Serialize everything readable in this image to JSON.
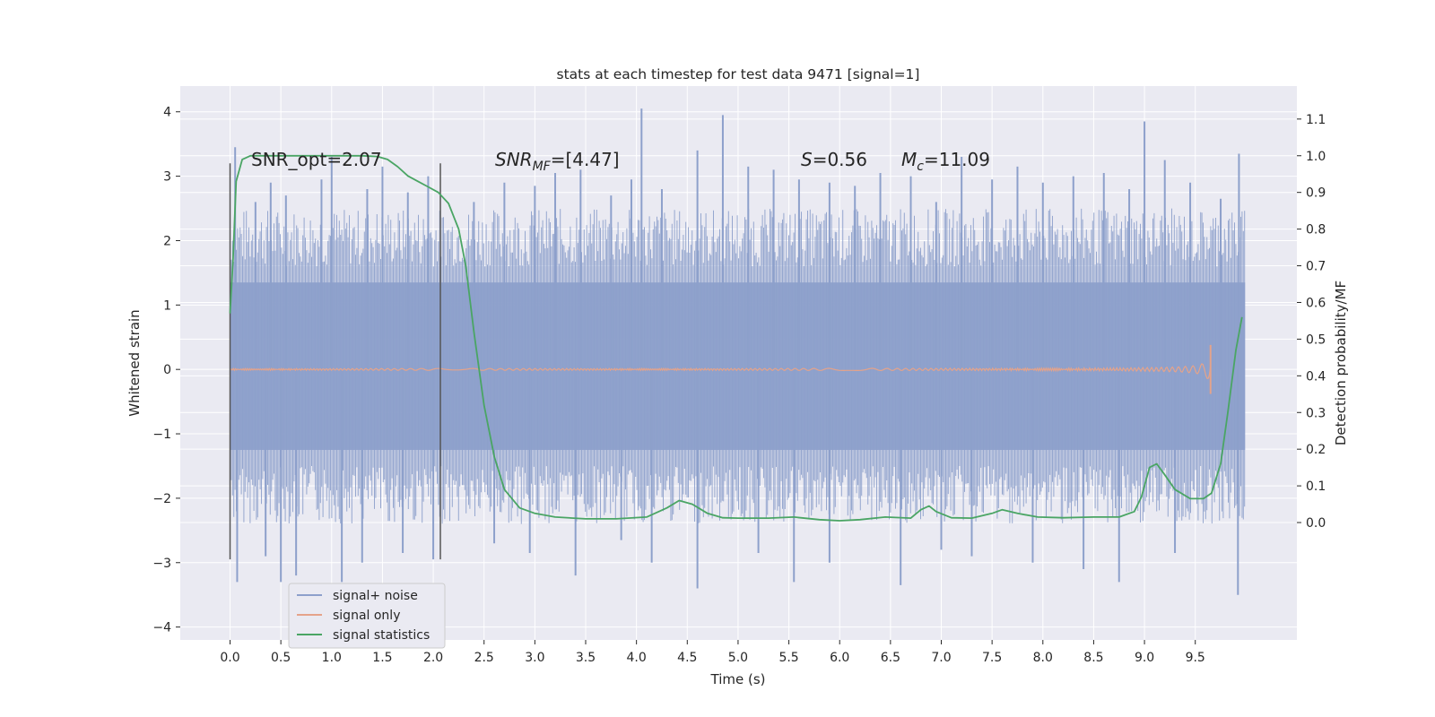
{
  "chart_data": {
    "type": "line",
    "title": "stats at each timestep for test data 9471 [signal=1]",
    "xlabel": "Time (s)",
    "ylabel": "Whitened strain",
    "y2label": "Detection probability/MF",
    "xlim": [
      -0.49,
      10.5
    ],
    "ylim": [
      -4.2,
      4.4
    ],
    "y2lim": [
      -0.32,
      1.19
    ],
    "xticks": [
      "0.0",
      "0.5",
      "1.0",
      "1.5",
      "2.0",
      "2.5",
      "3.0",
      "3.5",
      "4.0",
      "4.5",
      "5.0",
      "5.5",
      "6.0",
      "6.5",
      "7.0",
      "7.5",
      "8.0",
      "8.5",
      "9.0",
      "9.5"
    ],
    "yticks": [
      "4",
      "3",
      "2",
      "1",
      "0",
      "−1",
      "−2",
      "−3",
      "−4"
    ],
    "y2ticks": [
      "1.1",
      "1.0",
      "0.9",
      "0.8",
      "0.7",
      "0.6",
      "0.5",
      "0.4",
      "0.3",
      "0.2",
      "0.1",
      "0.0"
    ],
    "annotations": {
      "snr_opt": "SNR_opt=2.07",
      "snr_mf_italic": "SNR",
      "snr_mf_sub": "MF",
      "snr_mf_value": "=[4.47]",
      "s_italic": "S",
      "s_value": "=0.56",
      "mc_italic": "M",
      "mc_sub": "c",
      "mc_value": "=11.09"
    },
    "vertical_lines_x": [
      0.0,
      2.07
    ],
    "vertical_lines_y": [
      -2.95,
      3.2
    ],
    "grid": true,
    "legend_position": "lower-left",
    "series": [
      {
        "name": "signal+ noise",
        "color": "#8da0cb",
        "x_range": [
          0.0,
          9.99
        ],
        "core_band": [
          -1.25,
          1.35
        ],
        "spikes": [
          [
            0.05,
            3.45
          ],
          [
            0.25,
            2.6
          ],
          [
            0.4,
            2.9
          ],
          [
            0.55,
            2.7
          ],
          [
            0.9,
            2.95
          ],
          [
            1.0,
            3.3
          ],
          [
            1.35,
            2.8
          ],
          [
            1.5,
            3.15
          ],
          [
            1.75,
            2.75
          ],
          [
            1.95,
            3.0
          ],
          [
            2.4,
            2.6
          ],
          [
            2.7,
            2.9
          ],
          [
            3.0,
            2.85
          ],
          [
            3.2,
            3.05
          ],
          [
            3.45,
            3.1
          ],
          [
            3.75,
            2.7
          ],
          [
            3.95,
            2.95
          ],
          [
            4.05,
            4.05
          ],
          [
            4.25,
            2.8
          ],
          [
            4.6,
            3.4
          ],
          [
            4.85,
            3.95
          ],
          [
            5.1,
            3.15
          ],
          [
            5.35,
            3.1
          ],
          [
            5.6,
            2.95
          ],
          [
            5.9,
            2.9
          ],
          [
            6.15,
            2.85
          ],
          [
            6.4,
            3.05
          ],
          [
            6.7,
            3.0
          ],
          [
            6.95,
            2.6
          ],
          [
            7.2,
            3.3
          ],
          [
            7.5,
            2.95
          ],
          [
            7.75,
            3.15
          ],
          [
            8.0,
            2.9
          ],
          [
            8.3,
            3.0
          ],
          [
            8.6,
            3.05
          ],
          [
            8.85,
            2.8
          ],
          [
            9.0,
            3.85
          ],
          [
            9.2,
            3.25
          ],
          [
            9.45,
            2.9
          ],
          [
            9.75,
            2.65
          ],
          [
            9.93,
            3.35
          ]
        ],
        "dips": [
          [
            0.07,
            -3.3
          ],
          [
            0.35,
            -2.9
          ],
          [
            0.5,
            -3.3
          ],
          [
            0.65,
            -3.2
          ],
          [
            1.1,
            -3.3
          ],
          [
            1.3,
            -3.0
          ],
          [
            1.7,
            -2.85
          ],
          [
            2.0,
            -2.95
          ],
          [
            2.6,
            -2.7
          ],
          [
            2.95,
            -2.85
          ],
          [
            3.4,
            -3.2
          ],
          [
            3.85,
            -2.65
          ],
          [
            4.15,
            -3.0
          ],
          [
            4.6,
            -3.4
          ],
          [
            5.2,
            -2.85
          ],
          [
            5.55,
            -3.3
          ],
          [
            5.9,
            -3.0
          ],
          [
            6.6,
            -3.35
          ],
          [
            7.0,
            -2.8
          ],
          [
            7.3,
            -2.9
          ],
          [
            7.9,
            -3.0
          ],
          [
            8.4,
            -3.1
          ],
          [
            8.75,
            -3.3
          ],
          [
            9.3,
            -2.85
          ],
          [
            9.92,
            -3.5
          ]
        ]
      },
      {
        "name": "signal only",
        "color": "#e5a38a",
        "x_range": [
          0.0,
          9.65
        ],
        "chirp_peak_time": 9.65,
        "chirp_peak_amplitude": 0.28
      },
      {
        "name": "signal statistics",
        "color": "#4aa564",
        "axis": "right",
        "points": [
          [
            0.0,
            0.57
          ],
          [
            0.03,
            0.72
          ],
          [
            0.06,
            0.93
          ],
          [
            0.12,
            0.99
          ],
          [
            0.2,
            1.0
          ],
          [
            0.5,
            1.0
          ],
          [
            1.0,
            1.0
          ],
          [
            1.3,
            1.0
          ],
          [
            1.45,
            0.998
          ],
          [
            1.55,
            0.99
          ],
          [
            1.65,
            0.97
          ],
          [
            1.75,
            0.945
          ],
          [
            1.85,
            0.93
          ],
          [
            1.95,
            0.915
          ],
          [
            2.05,
            0.9
          ],
          [
            2.15,
            0.87
          ],
          [
            2.25,
            0.8
          ],
          [
            2.32,
            0.7
          ],
          [
            2.4,
            0.52
          ],
          [
            2.5,
            0.32
          ],
          [
            2.6,
            0.18
          ],
          [
            2.7,
            0.09
          ],
          [
            2.85,
            0.04
          ],
          [
            3.0,
            0.025
          ],
          [
            3.2,
            0.015
          ],
          [
            3.5,
            0.01
          ],
          [
            3.8,
            0.01
          ],
          [
            4.1,
            0.015
          ],
          [
            4.3,
            0.04
          ],
          [
            4.42,
            0.06
          ],
          [
            4.55,
            0.05
          ],
          [
            4.7,
            0.025
          ],
          [
            4.85,
            0.013
          ],
          [
            5.0,
            0.012
          ],
          [
            5.3,
            0.012
          ],
          [
            5.55,
            0.015
          ],
          [
            5.8,
            0.008
          ],
          [
            6.0,
            0.005
          ],
          [
            6.2,
            0.008
          ],
          [
            6.45,
            0.015
          ],
          [
            6.7,
            0.012
          ],
          [
            6.8,
            0.035
          ],
          [
            6.88,
            0.045
          ],
          [
            6.95,
            0.03
          ],
          [
            7.1,
            0.013
          ],
          [
            7.3,
            0.012
          ],
          [
            7.5,
            0.025
          ],
          [
            7.6,
            0.035
          ],
          [
            7.75,
            0.025
          ],
          [
            7.95,
            0.015
          ],
          [
            8.2,
            0.013
          ],
          [
            8.5,
            0.015
          ],
          [
            8.75,
            0.015
          ],
          [
            8.9,
            0.03
          ],
          [
            8.97,
            0.07
          ],
          [
            9.05,
            0.15
          ],
          [
            9.12,
            0.16
          ],
          [
            9.2,
            0.13
          ],
          [
            9.3,
            0.09
          ],
          [
            9.45,
            0.065
          ],
          [
            9.58,
            0.065
          ],
          [
            9.66,
            0.08
          ],
          [
            9.75,
            0.16
          ],
          [
            9.82,
            0.3
          ],
          [
            9.9,
            0.47
          ],
          [
            9.96,
            0.56
          ]
        ]
      }
    ]
  },
  "colors": {
    "plot_background": "#eaeaf2",
    "grid": "#ffffff",
    "vertical_line": "#555555",
    "text": "#262626"
  }
}
